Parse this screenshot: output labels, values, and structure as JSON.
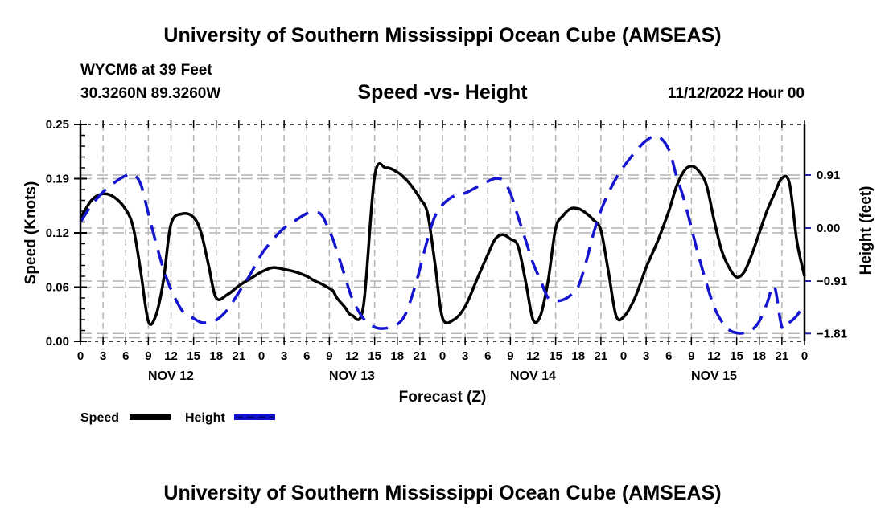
{
  "header": {
    "main_title": "University of Southern Mississippi Ocean Cube (AMSEAS)",
    "station": "WYCM6 at 39 Feet",
    "coords": "30.3260N  89.3260W",
    "chart_title": "Speed -vs- Height",
    "date": "11/12/2022 Hour 00"
  },
  "footer": {
    "title": "University of Southern Mississippi Ocean Cube (AMSEAS)"
  },
  "colors": {
    "speed": "#000000",
    "height": "#0000cc",
    "grid": "#b4b4b4",
    "axis": "#000000"
  },
  "chart_data": {
    "type": "line",
    "title": "Speed -vs- Height",
    "xlabel": "Forecast (Z)",
    "ylabel": "Speed (Knots)",
    "y2label": "Height (feet)",
    "xlim": [
      0,
      96
    ],
    "ylim": [
      0,
      0.25
    ],
    "y2lim": [
      -1.95,
      1.7
    ],
    "x_tick_labels": [
      "0",
      "3",
      "6",
      "9",
      "12",
      "15",
      "18",
      "21",
      "0",
      "3",
      "6",
      "9",
      "12",
      "15",
      "18",
      "21",
      "0",
      "3",
      "6",
      "9",
      "12",
      "15",
      "18",
      "21",
      "0",
      "3",
      "6",
      "9",
      "12",
      "15",
      "18",
      "21",
      "0"
    ],
    "day_labels": [
      {
        "label": "NOV 12",
        "hour": 12
      },
      {
        "label": "NOV 13",
        "hour": 36
      },
      {
        "label": "NOV 14",
        "hour": 60
      },
      {
        "label": "NOV 15",
        "hour": 84
      }
    ],
    "y_ticks": [
      "0.00",
      "0.06",
      "0.12",
      "0.19",
      "0.25"
    ],
    "y_tick_values": [
      0.0,
      0.0625,
      0.125,
      0.1875,
      0.25
    ],
    "y2_ticks": [
      "-1.81",
      "-0.91",
      "0.00",
      "0.91"
    ],
    "y2_tick_values": [
      -1.81,
      -0.91,
      0.0,
      0.91
    ],
    "grid": true,
    "legend_position": "bottom-left",
    "x": [
      0,
      1.5,
      3,
      4.5,
      6,
      7,
      8,
      9,
      10,
      11,
      12,
      13.5,
      15,
      16,
      17,
      18,
      19.5,
      21,
      22.5,
      24,
      25.5,
      27,
      28.5,
      30,
      31,
      32,
      33,
      33.5,
      34,
      35,
      36,
      37.5,
      39,
      40.5,
      42,
      43,
      44,
      45,
      46,
      47,
      48,
      49.5,
      51,
      52.5,
      54,
      55,
      56,
      57,
      58,
      59,
      60,
      61,
      62,
      63,
      64,
      65,
      66,
      67,
      68,
      69,
      70,
      71,
      72,
      73.5,
      75,
      76.5,
      78,
      79,
      80,
      81,
      82,
      83,
      84,
      85,
      86,
      87,
      88,
      89,
      90,
      91,
      92,
      93,
      94,
      95,
      96
    ],
    "series": [
      {
        "name": "Speed",
        "axis": "left",
        "style": "solid",
        "values": [
          0.142,
          0.163,
          0.17,
          0.166,
          0.152,
          0.131,
          0.08,
          0.023,
          0.03,
          0.07,
          0.135,
          0.147,
          0.143,
          0.125,
          0.087,
          0.05,
          0.054,
          0.064,
          0.072,
          0.08,
          0.085,
          0.083,
          0.08,
          0.075,
          0.07,
          0.066,
          0.061,
          0.058,
          0.05,
          0.04,
          0.03,
          0.04,
          0.19,
          0.2,
          0.195,
          0.188,
          0.178,
          0.165,
          0.148,
          0.09,
          0.027,
          0.025,
          0.04,
          0.07,
          0.1,
          0.118,
          0.123,
          0.118,
          0.11,
          0.07,
          0.025,
          0.03,
          0.07,
          0.13,
          0.145,
          0.153,
          0.153,
          0.148,
          0.14,
          0.128,
          0.08,
          0.03,
          0.028,
          0.05,
          0.085,
          0.115,
          0.15,
          0.178,
          0.196,
          0.202,
          0.196,
          0.18,
          0.14,
          0.105,
          0.085,
          0.074,
          0.08,
          0.1,
          0.125,
          0.15,
          0.17,
          0.188,
          0.182,
          0.115,
          0.075,
          0.055,
          0.052
        ]
      },
      {
        "name": "Height",
        "axis": "right",
        "style": "dashed",
        "values": [
          0.1,
          0.4,
          0.62,
          0.78,
          0.9,
          0.92,
          0.75,
          0.25,
          -0.25,
          -0.7,
          -1.05,
          -1.42,
          -1.55,
          -1.62,
          -1.62,
          -1.58,
          -1.4,
          -1.1,
          -0.8,
          -0.45,
          -0.2,
          0.0,
          0.13,
          0.25,
          0.28,
          0.22,
          -0.05,
          -0.2,
          -0.4,
          -0.8,
          -1.2,
          -1.55,
          -1.7,
          -1.72,
          -1.65,
          -1.5,
          -1.15,
          -0.7,
          -0.2,
          0.2,
          0.4,
          0.55,
          0.6,
          0.7,
          0.8,
          0.85,
          0.82,
          0.6,
          0.2,
          -0.2,
          -0.6,
          -0.9,
          -1.2,
          -1.25,
          -1.23,
          -1.15,
          -1.0,
          -0.6,
          -0.1,
          0.3,
          0.6,
          0.85,
          1.05,
          1.3,
          1.5,
          1.58,
          1.35,
          0.9,
          0.5,
          0.0,
          -0.5,
          -0.95,
          -1.35,
          -1.6,
          -1.75,
          -1.8,
          -1.8,
          -1.75,
          -1.6,
          -1.3,
          -1.0,
          -1.7,
          -1.62,
          -1.5,
          -1.3,
          -1.08,
          -0.6
        ]
      }
    ]
  },
  "legend": {
    "speed_label": "Speed",
    "height_label": "Height"
  }
}
